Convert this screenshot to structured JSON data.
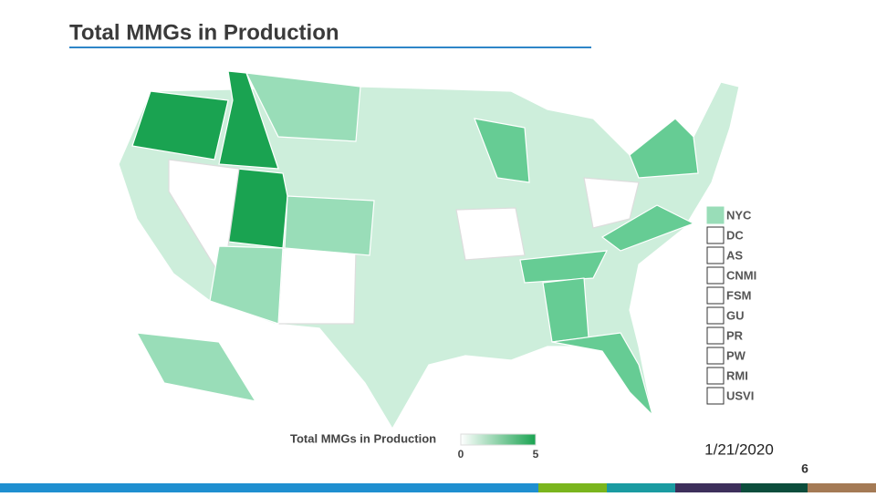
{
  "title": "Total MMGs in Production",
  "territories": [
    {
      "label": "NYC",
      "color": "#99ddb8"
    },
    {
      "label": "DC",
      "color": "#ffffff"
    },
    {
      "label": "AS",
      "color": "#ffffff"
    },
    {
      "label": "CNMI",
      "color": "#ffffff"
    },
    {
      "label": "FSM",
      "color": "#ffffff"
    },
    {
      "label": "GU",
      "color": "#ffffff"
    },
    {
      "label": "PR",
      "color": "#ffffff"
    },
    {
      "label": "PW",
      "color": "#ffffff"
    },
    {
      "label": "RMI",
      "color": "#ffffff"
    },
    {
      "label": "USVI",
      "color": "#ffffff"
    }
  ],
  "legend": {
    "title": "Total MMGs in Production",
    "range": [
      0,
      5
    ],
    "ticks": [
      0,
      5
    ],
    "colors": [
      "#ffffff",
      "#1aa351"
    ]
  },
  "date": "1/21/2020",
  "page_number": "6"
}
